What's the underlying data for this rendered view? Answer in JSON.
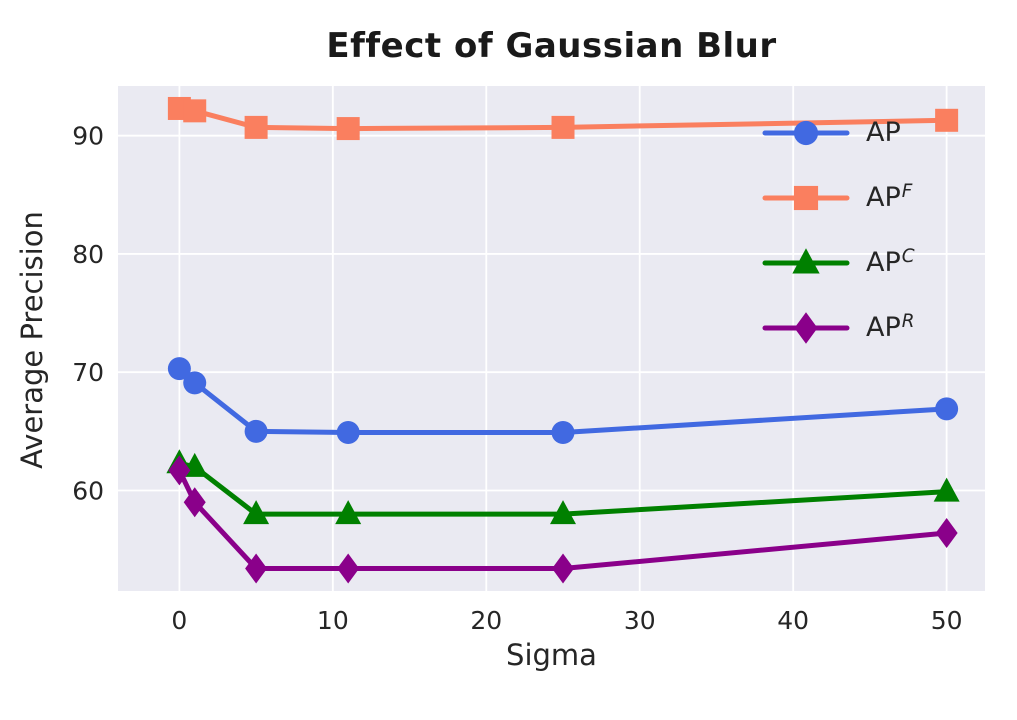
{
  "chart_data": {
    "type": "line",
    "title": "Effect of Gaussian Blur",
    "xlabel": "Sigma",
    "ylabel": "Average Precision",
    "x": [
      0,
      1,
      5,
      11,
      25,
      50
    ],
    "series": [
      {
        "name": "AP",
        "sup": "",
        "marker": "circle",
        "color": "#4169e1",
        "values": [
          70.3,
          69.1,
          65.0,
          64.9,
          64.9,
          66.9
        ]
      },
      {
        "name": "AP",
        "sup": "F",
        "marker": "square",
        "color": "#fa7f5f",
        "values": [
          92.3,
          92.1,
          90.7,
          90.6,
          90.7,
          91.3
        ]
      },
      {
        "name": "AP",
        "sup": "C",
        "marker": "triangle",
        "color": "#008000",
        "values": [
          62.3,
          62.0,
          58.0,
          58.0,
          58.0,
          59.9
        ]
      },
      {
        "name": "AP",
        "sup": "R",
        "marker": "diamond",
        "color": "#8a008a",
        "values": [
          61.7,
          59.0,
          53.4,
          53.4,
          53.4,
          56.4
        ]
      }
    ],
    "xticks": [
      0,
      10,
      20,
      30,
      40,
      50
    ],
    "yticks": [
      60,
      70,
      80,
      90
    ],
    "xlim": [
      -4,
      52.5
    ],
    "ylim": [
      51.5,
      94.2
    ],
    "grid": true,
    "legend_position": "upper right",
    "plot_bg": "#eaeaf2",
    "grid_color": "#ffffff",
    "text_color": "#262626"
  }
}
